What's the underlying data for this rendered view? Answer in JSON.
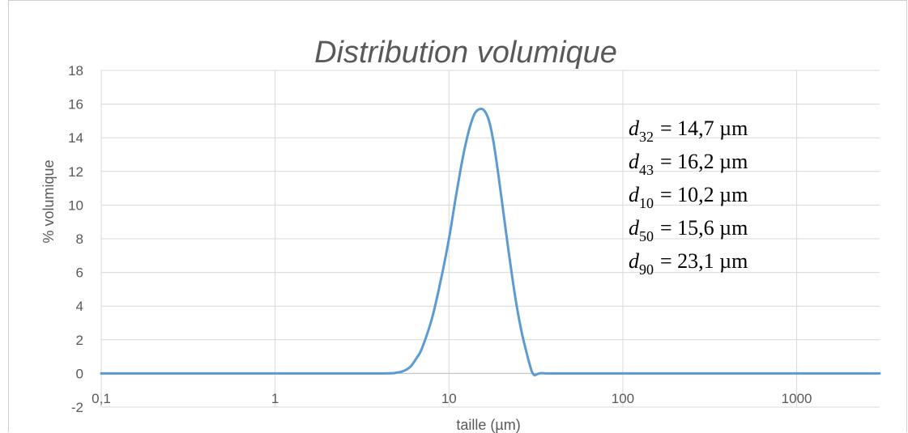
{
  "chart_data": {
    "type": "line",
    "title": "Distribution volumique",
    "xlabel": "taille (µm)",
    "ylabel": "% volumique",
    "x_scale": "log",
    "xlim": [
      0.1,
      3000
    ],
    "ylim": [
      -2,
      18
    ],
    "x_ticks": [
      0.1,
      1,
      10,
      100,
      1000
    ],
    "x_tick_labels": [
      "0,1",
      "1",
      "10",
      "100",
      "1000"
    ],
    "y_ticks": [
      -2,
      0,
      2,
      4,
      6,
      8,
      10,
      12,
      14,
      16,
      18
    ],
    "y_tick_labels": [
      "-2",
      "0",
      "2",
      "4",
      "6",
      "8",
      "10",
      "12",
      "14",
      "16",
      "18"
    ],
    "grid": true,
    "line_color": "#5b9bd5",
    "series": [
      {
        "x": [
          0.1,
          1,
          4,
          5,
          5.5,
          6,
          6.5,
          7,
          8,
          9,
          10,
          11,
          12,
          13,
          14,
          15,
          16,
          17,
          18,
          19,
          20,
          22,
          24,
          26,
          28,
          29,
          30,
          31,
          32,
          33,
          34,
          36,
          40,
          100,
          1000,
          3000
        ],
        "y": [
          0,
          0,
          0,
          0.05,
          0.15,
          0.4,
          0.9,
          1.5,
          3.3,
          5.6,
          8.0,
          10.6,
          12.8,
          14.4,
          15.4,
          15.7,
          15.6,
          15.0,
          13.8,
          12.2,
          10.5,
          7.3,
          4.6,
          2.6,
          1.2,
          0.6,
          0.1,
          -0.1,
          -0.05,
          0,
          0.02,
          0,
          0,
          0,
          0,
          0
        ]
      }
    ],
    "annotations": [
      {
        "var": "d",
        "sub": "32",
        "text": "= 14,7 µm"
      },
      {
        "var": "d",
        "sub": "43",
        "text": "= 16,2 µm"
      },
      {
        "var": "d",
        "sub": "10",
        "text": "= 10,2 µm"
      },
      {
        "var": "d",
        "sub": "50",
        "text": "= 15,6 µm"
      },
      {
        "var": "d",
        "sub": "90",
        "text": "= 23,1 µm"
      }
    ]
  }
}
